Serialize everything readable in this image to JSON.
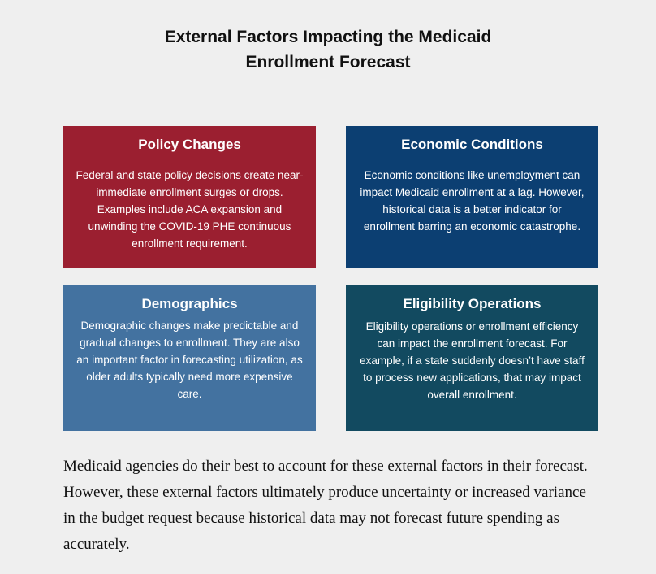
{
  "title": {
    "line1": "External Factors Impacting the Medicaid",
    "line2": "Enrollment Forecast"
  },
  "colors": {
    "background": "#efefef",
    "policy": "#9b1f30",
    "economic": "#0c3f72",
    "demographics": "#4372a0",
    "eligibility": "#124a60"
  },
  "cards": [
    {
      "heading": "Policy Changes",
      "text": "Federal and state policy decisions create near-immediate enrollment surges or drops. Examples include ACA expansion and unwinding the COVID-19 PHE continuous enrollment requirement."
    },
    {
      "heading": "Economic Conditions",
      "text": "Economic conditions like unemployment can impact Medicaid enrollment at a lag. However, historical data is a better indicator for enrollment barring an economic catastrophe."
    },
    {
      "heading": "Demographics",
      "text": "Demographic changes make predictable and gradual changes to enrollment. They are also an important factor in forecasting utilization, as older adults typically need more expensive care."
    },
    {
      "heading": "Eligibility Operations",
      "text": "Eligibility operations or enrollment efficiency can impact the enrollment forecast. For example, if a state suddenly doesn’t have staff to process new applications, that may impact overall enrollment."
    }
  ],
  "body_text": "Medicaid agencies do their best to account for these external factors in their forecast. However, these external factors ultimately produce uncertainty or increased variance in the budget request because historical data may not forecast future spending as accurately."
}
